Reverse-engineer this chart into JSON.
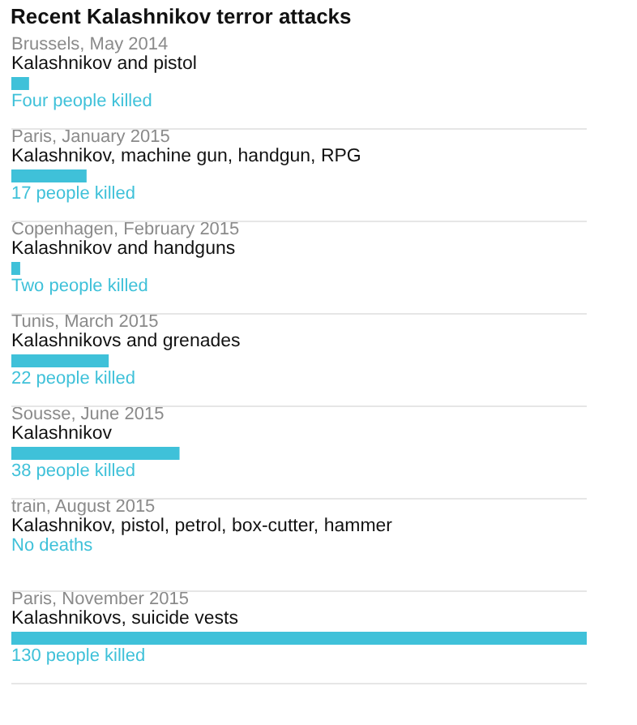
{
  "chart_data": {
    "type": "bar",
    "orientation": "horizontal",
    "title": "Recent Kalashnikov terror attacks",
    "categories": [
      "Brussels, May 2014",
      "Paris, January 2015",
      "Copenhagen, February 2015",
      "Tunis, March 2015",
      "Sousse, June 2015",
      "train, August 2015",
      "Paris, November 2015"
    ],
    "values": [
      4,
      17,
      2,
      22,
      38,
      0,
      130
    ],
    "color": "#3fc1d9",
    "value_labels": [
      "Four people killed",
      "17 people killed",
      "Two people killed",
      "22 people killed",
      "38 people killed",
      "No deaths",
      "130 people killed"
    ],
    "annotations": [
      "Kalashnikov and pistol",
      "Kalashnikov, machine gun, handgun, RPG",
      "Kalashnikov and handguns",
      "Kalashnikovs and grenades",
      "Kalashnikov",
      "Kalashnikov, pistol, petrol, box-cutter, hammer",
      "Kalashnikovs, suicide vests"
    ]
  }
}
